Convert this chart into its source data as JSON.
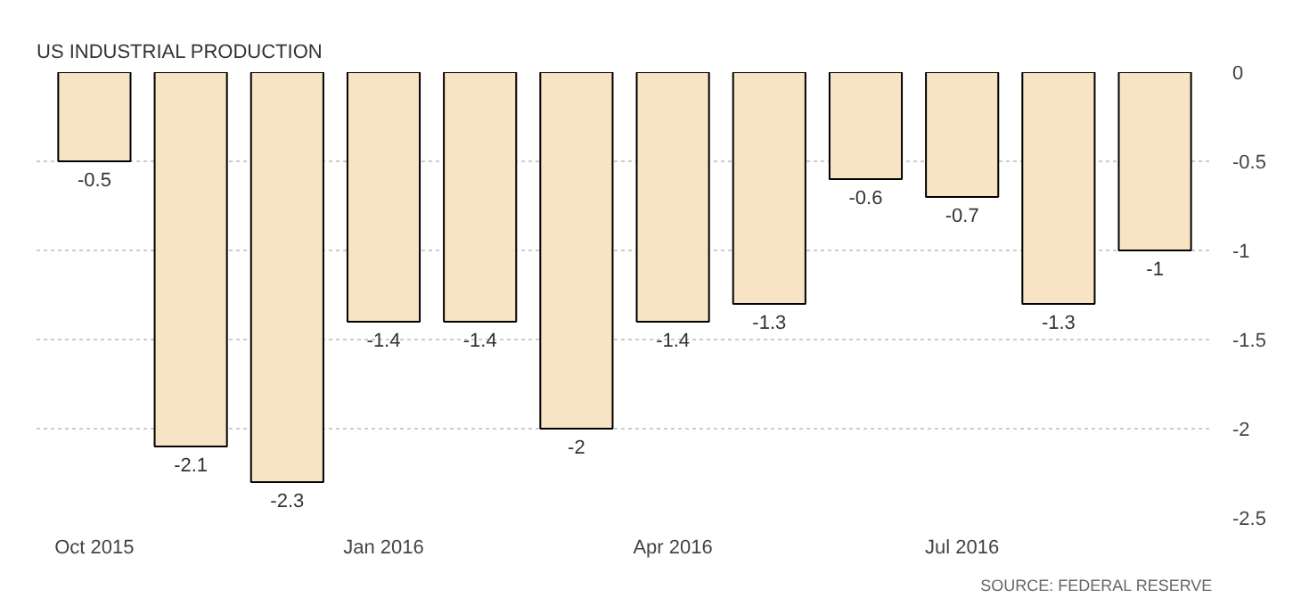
{
  "chart_data": {
    "type": "bar",
    "title": "US INDUSTRIAL PRODUCTION",
    "categories": [
      "Oct 2015",
      null,
      null,
      "Jan 2016",
      null,
      null,
      "Apr 2016",
      null,
      null,
      "Jul 2016",
      null,
      null
    ],
    "values": [
      -0.5,
      -2.1,
      -2.3,
      -1.4,
      -1.4,
      -2,
      -1.4,
      -1.3,
      -0.6,
      -0.7,
      -1.3,
      -1
    ],
    "color": "#f8e4c4",
    "ylim": [
      -2.5,
      0
    ],
    "yticks": [
      0,
      -0.5,
      -1,
      -1.5,
      -2,
      -2.5
    ],
    "grid": "y",
    "data_labels": true,
    "annotations": [
      "SOURCE: FEDERAL RESERVE"
    ]
  }
}
